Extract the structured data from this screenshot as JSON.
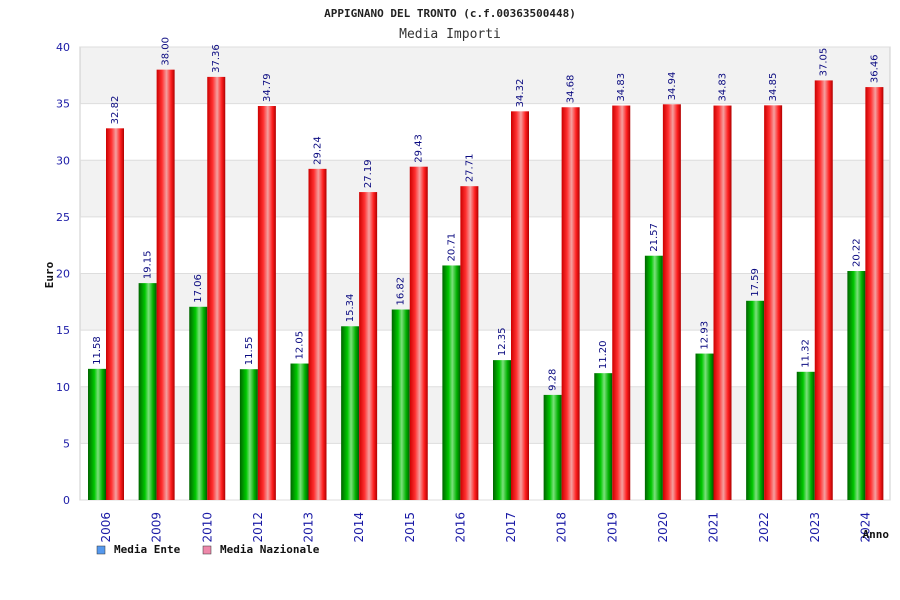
{
  "chart_data": {
    "type": "bar",
    "title": "APPIGNANO DEL TRONTO (c.f.00363500448)",
    "subtitle": "Media Importi",
    "xlabel": "Anno",
    "ylabel": "Euro",
    "ylim": [
      0,
      40
    ],
    "yticks": [
      0,
      5,
      10,
      15,
      20,
      25,
      30,
      35,
      40
    ],
    "categories": [
      "2006",
      "2009",
      "2010",
      "2012",
      "2013",
      "2014",
      "2015",
      "2016",
      "2017",
      "2018",
      "2019",
      "2020",
      "2021",
      "2022",
      "2023",
      "2024"
    ],
    "series": [
      {
        "name": "Media Ente",
        "color": "#00aa00",
        "values": [
          11.58,
          19.15,
          17.06,
          11.55,
          12.05,
          15.34,
          16.82,
          20.71,
          12.35,
          9.28,
          11.2,
          21.57,
          12.93,
          17.59,
          11.32,
          20.22
        ],
        "labels": [
          "11.58",
          "19.15",
          "17.06",
          "11.55",
          "12.05",
          "15.34",
          "16.82",
          "20.71",
          "12.35",
          "9.28",
          "11.20",
          "21.57",
          "12.93",
          "17.59",
          "11.32",
          "20.22"
        ]
      },
      {
        "name": "Media Nazionale",
        "color": "#ee1111",
        "values": [
          32.82,
          38.0,
          37.36,
          34.79,
          29.24,
          27.19,
          29.43,
          27.71,
          34.32,
          34.68,
          34.83,
          34.94,
          34.83,
          34.85,
          37.05,
          36.46
        ],
        "labels": [
          "32.82",
          "38.00",
          "37.36",
          "34.79",
          "29.24",
          "27.19",
          "29.43",
          "27.71",
          "34.32",
          "34.68",
          "34.83",
          "34.94",
          "34.83",
          "34.85",
          "37.05",
          "36.46"
        ]
      }
    ],
    "grid": true,
    "legend_position": "bottom-left",
    "legend_colors": [
      "#5599ee",
      "#ee88aa"
    ]
  }
}
